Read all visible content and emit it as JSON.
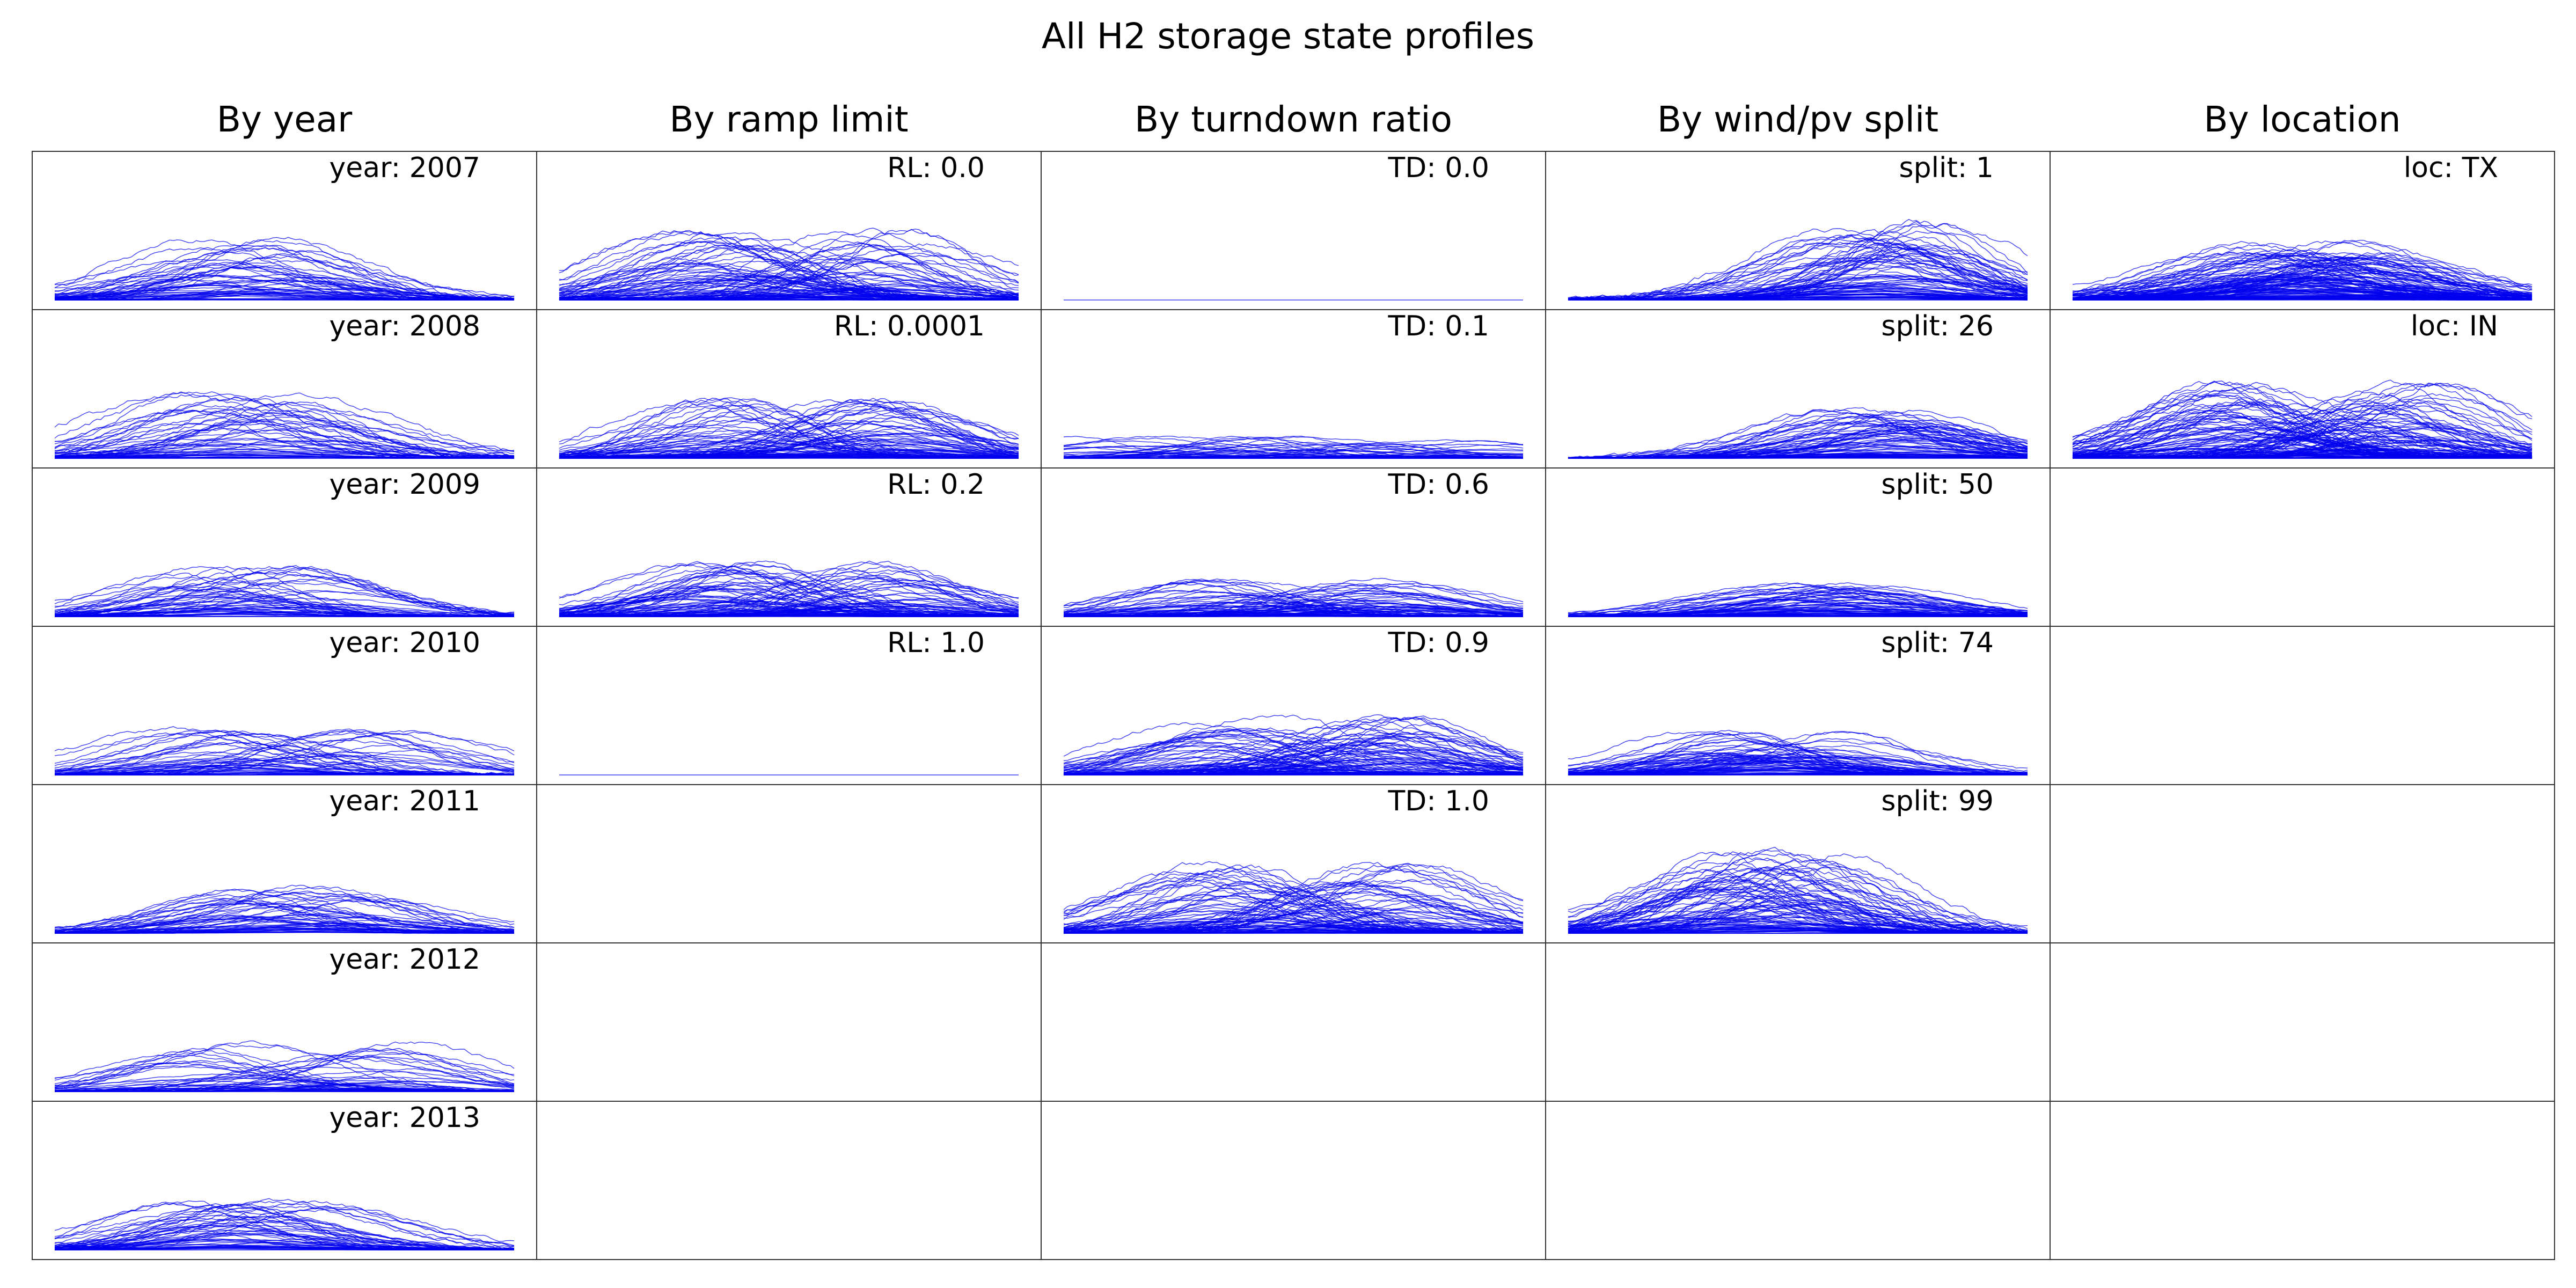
{
  "title": "All H2 storage state profiles",
  "chart_data": {
    "type": "line",
    "title": "All H2 storage state profiles",
    "grid": false,
    "line_color": "#0000ee",
    "columns": [
      {
        "heading": "By year",
        "panels": [
          {
            "label": "year: 2007",
            "shape": "hump_left",
            "level": 0.55,
            "count": 60
          },
          {
            "label": "year: 2008",
            "shape": "hump_left",
            "level": 0.6,
            "count": 60
          },
          {
            "label": "year: 2009",
            "shape": "hump_left",
            "level": 0.45,
            "count": 60
          },
          {
            "label": "year: 2010",
            "shape": "mixed",
            "level": 0.45,
            "count": 60
          },
          {
            "label": "year: 2011",
            "shape": "hump_center",
            "level": 0.42,
            "count": 60
          },
          {
            "label": "year: 2012",
            "shape": "mixed",
            "level": 0.45,
            "count": 60
          },
          {
            "label": "year: 2013",
            "shape": "hump_left",
            "level": 0.45,
            "count": 60
          }
        ]
      },
      {
        "heading": "By ramp limit",
        "panels": [
          {
            "label": "RL: 0.0",
            "shape": "mixed",
            "level": 0.65,
            "count": 100
          },
          {
            "label": "RL: 0.0001",
            "shape": "mixed",
            "level": 0.55,
            "count": 100
          },
          {
            "label": "RL: 0.2",
            "shape": "mixed",
            "level": 0.5,
            "count": 100
          },
          {
            "label": "RL: 1.0",
            "shape": "flat",
            "level": 0.0,
            "count": 1
          }
        ]
      },
      {
        "heading": "By turndown ratio",
        "panels": [
          {
            "label": "TD: 0.0",
            "shape": "flat",
            "level": 0.0,
            "count": 1
          },
          {
            "label": "TD: 0.1",
            "shape": "low",
            "level": 0.2,
            "count": 60
          },
          {
            "label": "TD: 0.6",
            "shape": "mixed",
            "level": 0.35,
            "count": 80
          },
          {
            "label": "TD: 0.9",
            "shape": "mixed",
            "level": 0.55,
            "count": 100
          },
          {
            "label": "TD: 1.0",
            "shape": "mixed",
            "level": 0.65,
            "count": 100
          }
        ]
      },
      {
        "heading": "By wind/pv split",
        "panels": [
          {
            "label": "split: 1",
            "shape": "hump_right",
            "level": 0.7,
            "count": 90
          },
          {
            "label": "split: 26",
            "shape": "hump_right",
            "level": 0.45,
            "count": 80
          },
          {
            "label": "split: 50",
            "shape": "hump_center",
            "level": 0.3,
            "count": 80
          },
          {
            "label": "split: 74",
            "shape": "hump_left",
            "level": 0.4,
            "count": 80
          },
          {
            "label": "split: 99",
            "shape": "hump_left",
            "level": 0.75,
            "count": 100
          }
        ]
      },
      {
        "heading": "By location",
        "panels": [
          {
            "label": "loc: TX",
            "shape": "hump_center",
            "level": 0.55,
            "count": 140
          },
          {
            "label": "loc: IN",
            "shape": "mixed",
            "level": 0.7,
            "count": 140
          }
        ]
      }
    ]
  }
}
